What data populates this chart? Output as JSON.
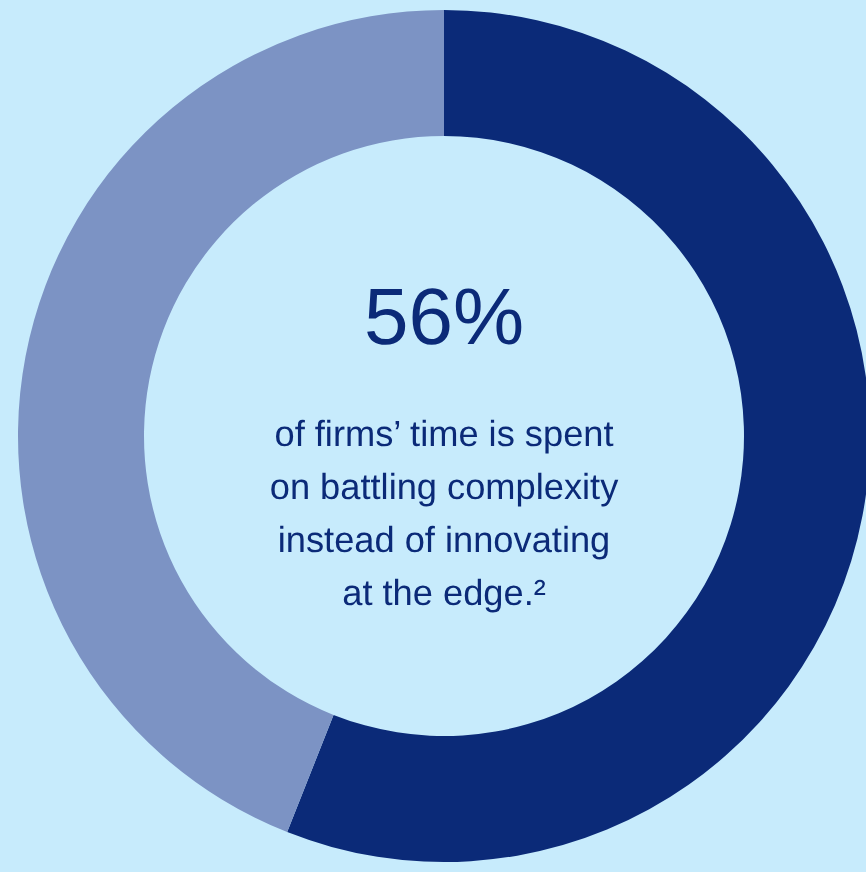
{
  "chart_data": {
    "type": "donut",
    "categories": [
      null,
      null
    ],
    "values": [
      56,
      44
    ],
    "colors": [
      "#0b2a78",
      "#7c93c4"
    ],
    "value_labels": [
      "56%",
      null
    ],
    "annotations": [
      "of firms’ time is spent",
      "on battling complexity",
      "instead of innovating",
      "at the edge.²"
    ]
  }
}
